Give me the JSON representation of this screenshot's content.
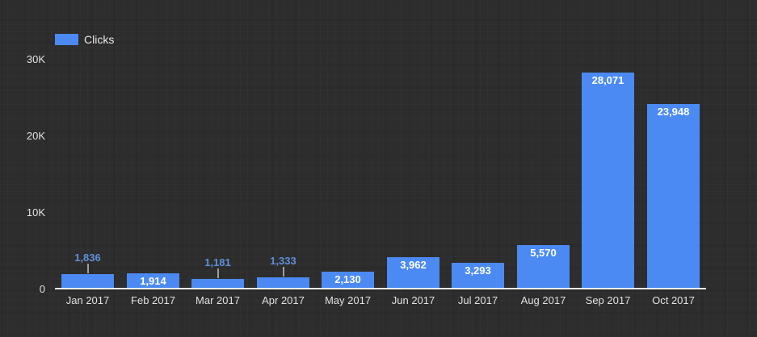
{
  "chart_data": {
    "type": "bar",
    "title": "",
    "categories": [
      "Jan 2017",
      "Feb 2017",
      "Mar 2017",
      "Apr 2017",
      "May 2017",
      "Jun 2017",
      "Jul 2017",
      "Aug 2017",
      "Sep 2017",
      "Oct 2017"
    ],
    "series": [
      {
        "name": "Clicks",
        "values": [
          1836,
          1914,
          1181,
          1333,
          2130,
          3962,
          3293,
          5570,
          28071,
          23948
        ],
        "labels": [
          "1,836",
          "1,914",
          "1,181",
          "1,333",
          "2,130",
          "3,962",
          "3,293",
          "5,570",
          "28,071",
          "23,948"
        ],
        "label_placement": [
          "above",
          "inside",
          "above",
          "above",
          "inside",
          "inside",
          "inside",
          "inside",
          "inside",
          "inside"
        ]
      }
    ],
    "xlabel": "",
    "ylabel": "",
    "ylim": [
      0,
      30000
    ],
    "yticks": [
      {
        "label": "30K",
        "value": 30000
      },
      {
        "label": "20K",
        "value": 20000
      },
      {
        "label": "10K",
        "value": 10000
      },
      {
        "label": "0",
        "value": 0
      }
    ],
    "grid": false,
    "legend_position": "top-left"
  },
  "colors": {
    "background": "#2d2d2d",
    "bar": "#4b8af2",
    "inside_label": "#ffffff",
    "above_label": "#5f8fd8",
    "axis_line": "#ededed",
    "tick_text": "#e0e0e0",
    "stem": "#9e9e9e",
    "legend_text": "#e8e8e8"
  }
}
